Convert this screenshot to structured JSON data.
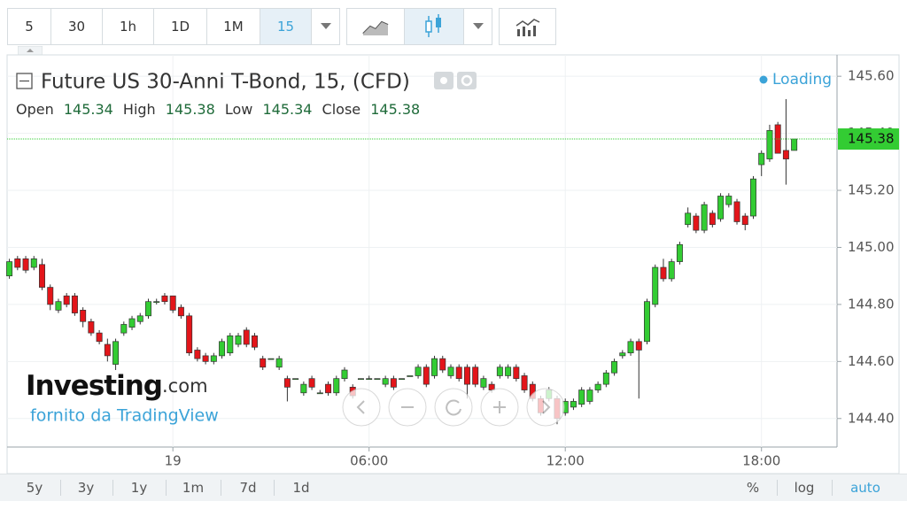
{
  "toolbar": {
    "intervals": [
      "5",
      "30",
      "1h",
      "1D",
      "1M",
      "15"
    ]
  },
  "chart_data": {
    "type": "candlestick",
    "title": "Future US 30-Anni T-Bond, 15, (CFD)",
    "status": "Loading",
    "ohlc_labels": [
      "Open",
      "High",
      "Low",
      "Close"
    ],
    "up_color": "#33cc33",
    "down_color": "#e3151a",
    "x": [
      -5,
      -4.75,
      -4.5,
      -4.25,
      -4,
      -3.75,
      -3.5,
      -3.25,
      -3,
      -2.75,
      -2.5,
      -2.25,
      -2,
      -1.75,
      -1.5,
      -1.25,
      -1,
      -0.75,
      -0.5,
      -0.25,
      0,
      0.25,
      0.5,
      0.75,
      1,
      1.25,
      1.5,
      1.75,
      2,
      2.25,
      2.5,
      2.75,
      3,
      3.25,
      3.5,
      3.75,
      4,
      4.25,
      4.5,
      4.75,
      5,
      5.25,
      5.5,
      5.75,
      6,
      6.25,
      6.5,
      6.75,
      7,
      7.25,
      7.5,
      7.75,
      8,
      8.25,
      8.5,
      8.75,
      9,
      9.25,
      9.5,
      9.75,
      10,
      10.25,
      10.5,
      10.75,
      11,
      11.25,
      11.5,
      11.75,
      12,
      12.25,
      12.5,
      12.75,
      13,
      13.25,
      13.5,
      13.75,
      14,
      14.25,
      14.5,
      14.75,
      15,
      15.25,
      15.5,
      15.75,
      16,
      16.25,
      16.5,
      16.75,
      17,
      17.25,
      17.5,
      17.75,
      18,
      18.25,
      18.5,
      18.75,
      19
    ],
    "open": [
      144.9,
      144.96,
      144.96,
      144.93,
      144.94,
      144.86,
      144.78,
      144.83,
      144.83,
      144.78,
      144.74,
      144.7,
      144.66,
      144.59,
      144.7,
      144.72,
      144.74,
      144.76,
      144.81,
      144.83,
      144.83,
      144.79,
      144.76,
      144.64,
      144.62,
      144.6,
      144.62,
      144.63,
      144.66,
      144.71,
      144.69,
      144.61,
      144.61,
      144.58,
      144.54,
      144.54,
      144.49,
      144.54,
      144.49,
      144.52,
      144.49,
      144.54,
      144.51,
      144.54,
      144.54,
      144.54,
      144.52,
      144.54,
      144.54,
      144.55,
      144.55,
      144.58,
      144.55,
      144.61,
      144.55,
      144.58,
      144.58,
      144.58,
      144.51,
      144.52,
      144.55,
      144.55,
      144.58,
      144.55,
      144.52,
      144.47,
      144.47,
      144.47,
      144.42,
      144.44,
      144.45,
      144.46,
      144.5,
      144.52,
      144.56,
      144.62,
      144.63,
      144.67,
      144.67,
      144.8,
      144.93,
      144.89,
      144.95,
      145.08,
      145.11,
      145.06,
      145.12,
      145.1,
      145.15,
      145.16,
      145.11,
      145.11,
      145.29,
      145.31,
      145.43,
      145.34,
      145.34
    ],
    "high": [
      144.96,
      144.97,
      144.97,
      144.97,
      144.96,
      144.87,
      144.82,
      144.84,
      144.84,
      144.79,
      144.75,
      144.71,
      144.68,
      144.68,
      144.74,
      144.76,
      144.77,
      144.82,
      144.82,
      144.84,
      144.83,
      144.8,
      144.77,
      144.65,
      144.63,
      144.63,
      144.68,
      144.7,
      144.7,
      144.72,
      144.7,
      144.62,
      144.61,
      144.62,
      144.55,
      144.54,
      144.53,
      144.55,
      144.5,
      144.53,
      144.55,
      144.58,
      144.52,
      144.54,
      144.55,
      144.54,
      144.55,
      144.55,
      144.54,
      144.55,
      144.59,
      144.59,
      144.62,
      144.62,
      144.59,
      144.59,
      144.59,
      144.59,
      144.55,
      144.53,
      144.59,
      144.59,
      144.59,
      144.56,
      144.53,
      144.48,
      144.51,
      144.48,
      144.47,
      144.47,
      144.51,
      144.51,
      144.53,
      144.57,
      144.61,
      144.64,
      144.68,
      144.68,
      144.82,
      144.94,
      144.96,
      144.96,
      145.02,
      145.14,
      145.12,
      145.16,
      145.13,
      145.19,
      145.19,
      145.17,
      145.12,
      145.25,
      145.34,
      145.43,
      145.44,
      145.52,
      145.38
    ],
    "low": [
      144.89,
      144.92,
      144.91,
      144.92,
      144.85,
      144.78,
      144.77,
      144.79,
      144.76,
      144.72,
      144.69,
      144.66,
      144.6,
      144.57,
      144.69,
      144.71,
      144.73,
      144.75,
      144.8,
      144.8,
      144.77,
      144.75,
      144.62,
      144.6,
      144.59,
      144.59,
      144.61,
      144.62,
      144.65,
      144.65,
      144.64,
      144.57,
      144.61,
      144.57,
      144.46,
      144.54,
      144.48,
      144.5,
      144.49,
      144.48,
      144.48,
      144.53,
      144.47,
      144.54,
      144.54,
      144.54,
      144.51,
      144.5,
      144.54,
      144.55,
      144.54,
      144.51,
      144.54,
      144.56,
      144.54,
      144.53,
      144.47,
      144.51,
      144.5,
      144.49,
      144.54,
      144.54,
      144.53,
      144.49,
      144.46,
      144.41,
      144.46,
      144.38,
      144.41,
      144.43,
      144.44,
      144.45,
      144.49,
      144.51,
      144.55,
      144.61,
      144.62,
      144.47,
      144.66,
      144.79,
      144.88,
      144.88,
      144.94,
      145.07,
      145.05,
      145.05,
      145.07,
      145.09,
      145.14,
      145.08,
      145.06,
      145.1,
      145.25,
      145.3,
      145.33,
      145.22,
      145.34
    ],
    "close": [
      144.95,
      144.93,
      144.92,
      144.96,
      144.86,
      144.8,
      144.81,
      144.8,
      144.77,
      144.74,
      144.7,
      144.67,
      144.62,
      144.67,
      144.73,
      144.75,
      144.76,
      144.81,
      144.81,
      144.81,
      144.78,
      144.76,
      144.63,
      144.61,
      144.6,
      144.62,
      144.67,
      144.69,
      144.69,
      144.66,
      144.65,
      144.58,
      144.61,
      144.61,
      144.51,
      144.54,
      144.52,
      144.51,
      144.49,
      144.49,
      144.54,
      144.57,
      144.48,
      144.54,
      144.54,
      144.54,
      144.54,
      144.51,
      144.54,
      144.55,
      144.58,
      144.52,
      144.61,
      144.57,
      144.58,
      144.54,
      144.52,
      144.52,
      144.54,
      144.5,
      144.58,
      144.58,
      144.54,
      144.5,
      144.47,
      144.42,
      144.5,
      144.4,
      144.46,
      144.46,
      144.5,
      144.5,
      144.52,
      144.56,
      144.6,
      144.63,
      144.67,
      144.64,
      144.81,
      144.93,
      144.89,
      144.95,
      145.01,
      145.12,
      145.06,
      145.15,
      145.08,
      145.18,
      145.18,
      145.09,
      145.08,
      145.24,
      145.33,
      145.41,
      145.33,
      145.31,
      145.38
    ],
    "xlim": [
      -5.07,
      20.31
    ],
    "ylim": [
      144.3,
      145.675
    ],
    "xticks": [
      {
        "value": 0,
        "label": "19"
      },
      {
        "value": 6,
        "label": "06:00"
      },
      {
        "value": 12,
        "label": "12:00"
      },
      {
        "value": 18,
        "label": "18:00"
      }
    ],
    "yticks": [
      {
        "value": 144.4,
        "label": "144.40"
      },
      {
        "value": 144.6,
        "label": "144.60"
      },
      {
        "value": 144.8,
        "label": "144.80"
      },
      {
        "value": 145,
        "label": "145.00"
      },
      {
        "value": 145.2,
        "label": "145.20"
      },
      {
        "value": 145.4,
        "label": "145.40"
      },
      {
        "value": 145.6,
        "label": "145.60"
      }
    ],
    "grid": true
  },
  "branding": {
    "logo": "Investing",
    "logo_suffix": ".com",
    "provider": "fornito da TradingView"
  },
  "footer": {
    "ranges": [
      "5y",
      "3y",
      "1y",
      "1m",
      "7d",
      "1d"
    ],
    "options": [
      "%",
      "log",
      "auto"
    ]
  }
}
